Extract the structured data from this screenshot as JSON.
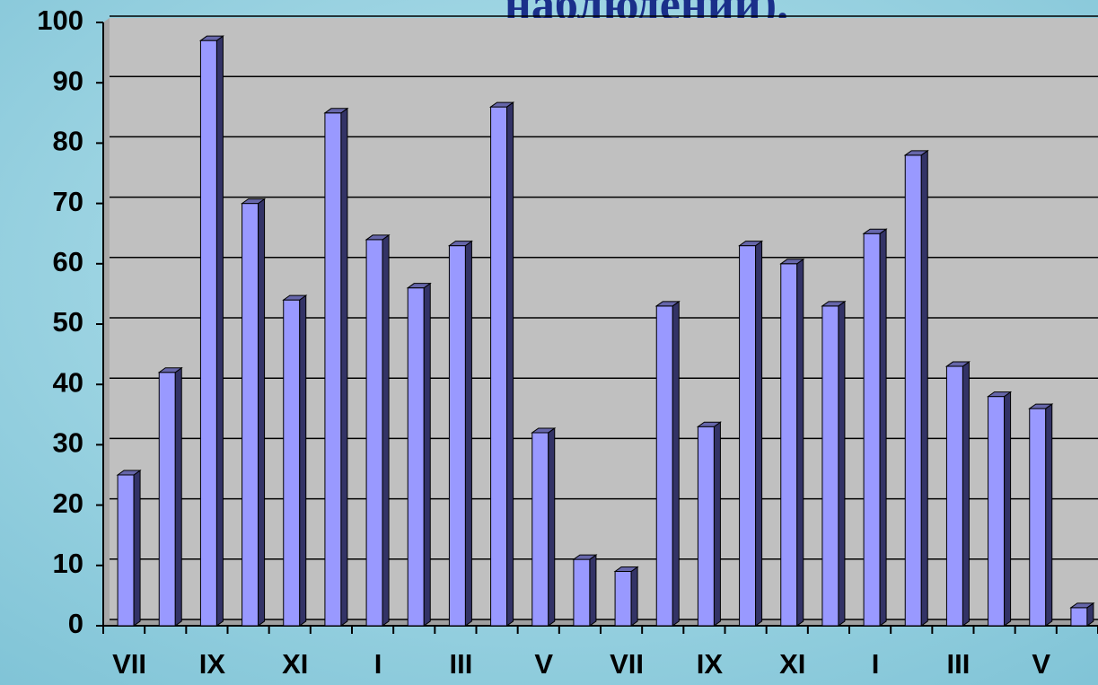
{
  "chart_data": {
    "type": "bar",
    "title": "наблюдений).",
    "categories": [
      "VII",
      null,
      "IX",
      null,
      "XI",
      null,
      "I",
      null,
      "III",
      null,
      "V",
      null,
      "VII",
      null,
      "IX",
      null,
      "XI",
      null,
      "I",
      null,
      "III",
      null,
      "V",
      null
    ],
    "values": [
      25,
      42,
      97,
      70,
      54,
      85,
      64,
      56,
      63,
      86,
      32,
      11,
      9,
      53,
      33,
      63,
      60,
      53,
      65,
      78,
      43,
      38,
      36,
      3
    ],
    "color": "#9999ff",
    "ylim": [
      0,
      100
    ],
    "yticks": [
      0,
      10,
      20,
      30,
      40,
      50,
      60,
      70,
      80,
      90,
      100
    ],
    "grid": true
  }
}
